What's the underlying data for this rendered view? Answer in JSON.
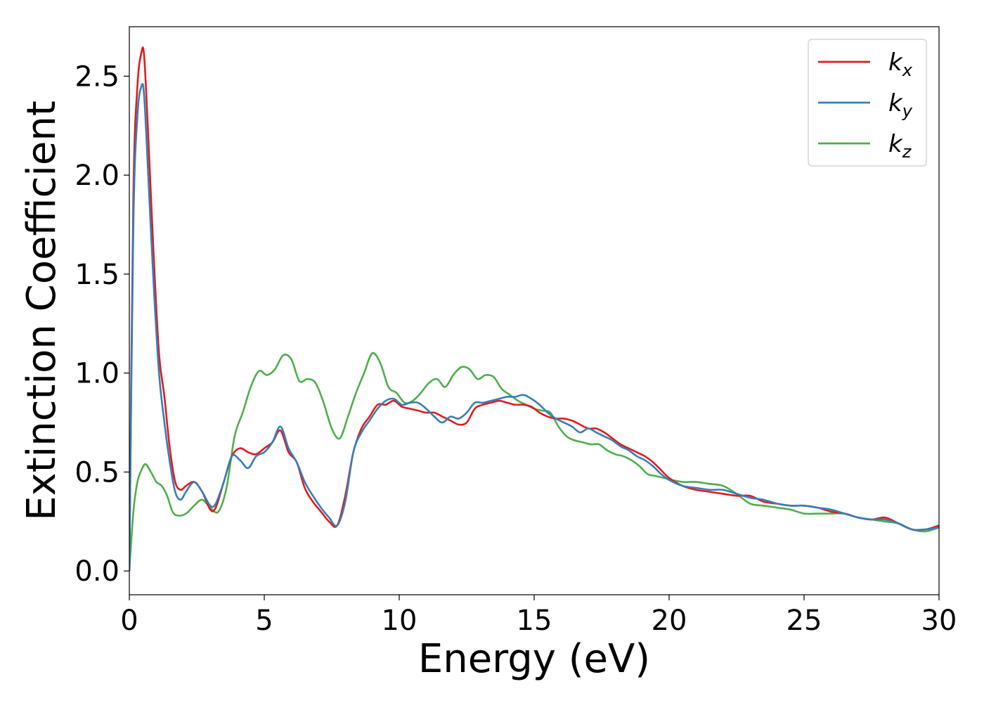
{
  "chart_data": {
    "type": "line",
    "title": "",
    "xlabel": "Energy (eV)",
    "ylabel": "Extinction Coefficient",
    "xlim": [
      0,
      30
    ],
    "ylim": [
      -0.12,
      2.75
    ],
    "xticks": [
      0,
      5,
      10,
      15,
      20,
      25,
      30
    ],
    "xtick_labels": [
      "0",
      "5",
      "10",
      "15",
      "20",
      "25",
      "30"
    ],
    "yticks": [
      0.0,
      0.5,
      1.0,
      1.5,
      2.0,
      2.5
    ],
    "ytick_labels": [
      "0.0",
      "0.5",
      "1.0",
      "1.5",
      "2.0",
      "2.5"
    ],
    "grid": false,
    "legend_position": "top-right",
    "series": [
      {
        "name": "k",
        "subscript": "x",
        "color": "#e41a1c",
        "x": [
          0,
          0.15,
          0.3,
          0.45,
          0.55,
          0.7,
          0.9,
          1.1,
          1.3,
          1.5,
          1.7,
          1.9,
          2.1,
          2.4,
          2.7,
          3.0,
          3.2,
          3.5,
          3.8,
          4.1,
          4.4,
          4.7,
          5.0,
          5.3,
          5.6,
          5.9,
          6.2,
          6.5,
          6.8,
          7.1,
          7.4,
          7.7,
          8.0,
          8.3,
          8.6,
          8.9,
          9.2,
          9.5,
          9.8,
          10.1,
          10.4,
          10.7,
          11.0,
          11.3,
          11.6,
          11.9,
          12.2,
          12.5,
          12.8,
          13.1,
          13.4,
          13.7,
          14.0,
          14.3,
          14.6,
          14.9,
          15.2,
          15.5,
          15.8,
          16.1,
          16.4,
          16.7,
          17.0,
          17.3,
          17.6,
          17.9,
          18.2,
          18.5,
          18.8,
          19.1,
          19.4,
          19.7,
          20.0,
          20.5,
          21.0,
          21.5,
          22.0,
          22.5,
          23.0,
          23.5,
          24.0,
          24.5,
          25.0,
          25.5,
          26.0,
          26.5,
          27.0,
          27.5,
          28.0,
          28.5,
          29.0,
          29.5,
          30.0
        ],
        "values": [
          0.0,
          1.9,
          2.45,
          2.62,
          2.6,
          2.2,
          1.6,
          1.1,
          0.88,
          0.62,
          0.45,
          0.41,
          0.43,
          0.45,
          0.4,
          0.31,
          0.32,
          0.45,
          0.58,
          0.62,
          0.6,
          0.59,
          0.62,
          0.65,
          0.71,
          0.6,
          0.55,
          0.42,
          0.35,
          0.3,
          0.25,
          0.23,
          0.38,
          0.6,
          0.72,
          0.78,
          0.84,
          0.84,
          0.86,
          0.83,
          0.82,
          0.81,
          0.8,
          0.8,
          0.78,
          0.76,
          0.74,
          0.75,
          0.82,
          0.84,
          0.85,
          0.86,
          0.85,
          0.84,
          0.84,
          0.83,
          0.8,
          0.78,
          0.77,
          0.77,
          0.76,
          0.74,
          0.72,
          0.72,
          0.7,
          0.67,
          0.64,
          0.62,
          0.6,
          0.58,
          0.55,
          0.51,
          0.47,
          0.43,
          0.41,
          0.4,
          0.39,
          0.38,
          0.38,
          0.35,
          0.34,
          0.33,
          0.33,
          0.32,
          0.3,
          0.29,
          0.27,
          0.26,
          0.27,
          0.24,
          0.21,
          0.21,
          0.23
        ]
      },
      {
        "name": "k",
        "subscript": "y",
        "color": "#377eb8",
        "x": [
          0,
          0.15,
          0.3,
          0.45,
          0.55,
          0.7,
          0.9,
          1.1,
          1.3,
          1.5,
          1.7,
          1.9,
          2.1,
          2.4,
          2.7,
          3.0,
          3.2,
          3.5,
          3.8,
          4.1,
          4.4,
          4.7,
          5.0,
          5.3,
          5.6,
          5.9,
          6.2,
          6.5,
          6.8,
          7.1,
          7.4,
          7.7,
          8.0,
          8.3,
          8.6,
          8.9,
          9.2,
          9.5,
          9.8,
          10.1,
          10.4,
          10.7,
          11.0,
          11.3,
          11.6,
          11.9,
          12.2,
          12.5,
          12.8,
          13.1,
          13.4,
          13.7,
          14.0,
          14.3,
          14.6,
          14.9,
          15.2,
          15.5,
          15.8,
          16.1,
          16.4,
          16.7,
          17.0,
          17.3,
          17.6,
          17.9,
          18.2,
          18.5,
          18.8,
          19.1,
          19.4,
          19.7,
          20.0,
          20.5,
          21.0,
          21.5,
          22.0,
          22.5,
          23.0,
          23.5,
          24.0,
          24.5,
          25.0,
          25.5,
          26.0,
          26.5,
          27.0,
          27.5,
          28.0,
          28.5,
          29.0,
          29.5,
          30.0
        ],
        "values": [
          0.0,
          1.75,
          2.3,
          2.45,
          2.4,
          2.0,
          1.45,
          1.0,
          0.75,
          0.55,
          0.4,
          0.36,
          0.4,
          0.45,
          0.4,
          0.33,
          0.34,
          0.45,
          0.58,
          0.56,
          0.52,
          0.58,
          0.6,
          0.65,
          0.73,
          0.62,
          0.55,
          0.45,
          0.38,
          0.32,
          0.27,
          0.23,
          0.35,
          0.6,
          0.7,
          0.76,
          0.82,
          0.86,
          0.87,
          0.84,
          0.85,
          0.85,
          0.82,
          0.78,
          0.75,
          0.78,
          0.77,
          0.8,
          0.85,
          0.85,
          0.86,
          0.87,
          0.88,
          0.88,
          0.89,
          0.87,
          0.84,
          0.8,
          0.77,
          0.75,
          0.73,
          0.7,
          0.72,
          0.7,
          0.68,
          0.66,
          0.63,
          0.61,
          0.58,
          0.56,
          0.53,
          0.49,
          0.46,
          0.43,
          0.42,
          0.41,
          0.41,
          0.39,
          0.37,
          0.36,
          0.34,
          0.33,
          0.33,
          0.32,
          0.31,
          0.29,
          0.27,
          0.26,
          0.26,
          0.24,
          0.21,
          0.21,
          0.22
        ]
      },
      {
        "name": "k",
        "subscript": "z",
        "color": "#4daf4a",
        "x": [
          0,
          0.15,
          0.3,
          0.45,
          0.6,
          0.8,
          1.0,
          1.2,
          1.4,
          1.6,
          1.8,
          2.1,
          2.4,
          2.7,
          3.0,
          3.3,
          3.6,
          3.9,
          4.2,
          4.5,
          4.8,
          5.1,
          5.4,
          5.7,
          6.0,
          6.3,
          6.6,
          6.9,
          7.2,
          7.5,
          7.8,
          8.1,
          8.4,
          8.7,
          9.0,
          9.3,
          9.6,
          9.9,
          10.2,
          10.5,
          10.8,
          11.1,
          11.4,
          11.7,
          12.0,
          12.3,
          12.6,
          12.9,
          13.2,
          13.5,
          13.8,
          14.1,
          14.4,
          14.7,
          15.0,
          15.3,
          15.6,
          15.9,
          16.2,
          16.5,
          16.8,
          17.1,
          17.4,
          17.7,
          18.0,
          18.3,
          18.6,
          18.9,
          19.2,
          19.5,
          19.8,
          20.1,
          20.5,
          21.0,
          21.5,
          22.0,
          22.5,
          23.0,
          23.5,
          24.0,
          24.5,
          25.0,
          25.5,
          26.0,
          26.5,
          27.0,
          27.5,
          28.0,
          28.5,
          29.0,
          29.5,
          30.0
        ],
        "values": [
          0.0,
          0.3,
          0.45,
          0.51,
          0.54,
          0.5,
          0.45,
          0.43,
          0.38,
          0.3,
          0.28,
          0.29,
          0.33,
          0.36,
          0.32,
          0.3,
          0.42,
          0.68,
          0.8,
          0.93,
          1.01,
          0.99,
          1.02,
          1.09,
          1.07,
          0.96,
          0.97,
          0.95,
          0.85,
          0.72,
          0.67,
          0.78,
          0.9,
          1.0,
          1.1,
          1.05,
          0.93,
          0.9,
          0.85,
          0.86,
          0.9,
          0.95,
          0.97,
          0.93,
          0.99,
          1.03,
          1.02,
          0.97,
          0.99,
          0.98,
          0.92,
          0.89,
          0.86,
          0.84,
          0.82,
          0.81,
          0.8,
          0.73,
          0.68,
          0.66,
          0.65,
          0.64,
          0.64,
          0.61,
          0.59,
          0.58,
          0.56,
          0.53,
          0.49,
          0.48,
          0.47,
          0.46,
          0.45,
          0.45,
          0.44,
          0.43,
          0.39,
          0.34,
          0.33,
          0.32,
          0.31,
          0.29,
          0.29,
          0.29,
          0.29,
          0.27,
          0.26,
          0.25,
          0.24,
          0.21,
          0.2,
          0.22
        ]
      }
    ]
  }
}
